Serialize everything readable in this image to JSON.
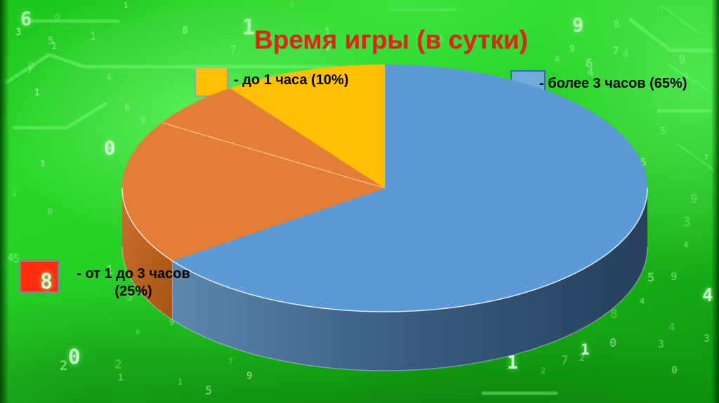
{
  "title": {
    "text": "Время игры (в сутки)",
    "color": "#E2231A"
  },
  "chart_data": {
    "type": "pie",
    "style": "3d",
    "title": "Время игры (в сутки)",
    "start_angle_deg": 0,
    "direction": "clockwise",
    "slices": [
      {
        "label": "более 3 часов",
        "value": 65,
        "color": "#5B9AD6",
        "side_dark": "#263F5D"
      },
      {
        "label": "от 1 до 3 часов",
        "value": 25,
        "color": "#E37E37",
        "side_dark": "#A85414"
      },
      {
        "label": "до 1 часа",
        "value": 10,
        "color": "#FFC003",
        "side_dark": "#C98E00"
      }
    ],
    "style_hints": {
      "divider_line_deg": 302,
      "legend_position": "floating",
      "grid": false
    }
  },
  "legend": {
    "yellow": {
      "text": "- до 1 часа (10%)",
      "swatch_color": "#FFC003",
      "swatch_border": "#95A596"
    },
    "blue": {
      "text": "- более 3 часов (65%)",
      "swatch_color": "#74A9DC",
      "swatch_border": "#2E6DA4"
    },
    "red": {
      "line1": "- от 1 до 3 часов",
      "line2": "(25%)",
      "swatch_color": "#FF2B0D",
      "swatch_border": "#7D8B7D"
    }
  },
  "background": {
    "theme": "matrix-green-circuit",
    "digit_chars": "0123456789",
    "digit_color": "#A8F5A8",
    "bright_digit_color": "#D6FFD6"
  }
}
